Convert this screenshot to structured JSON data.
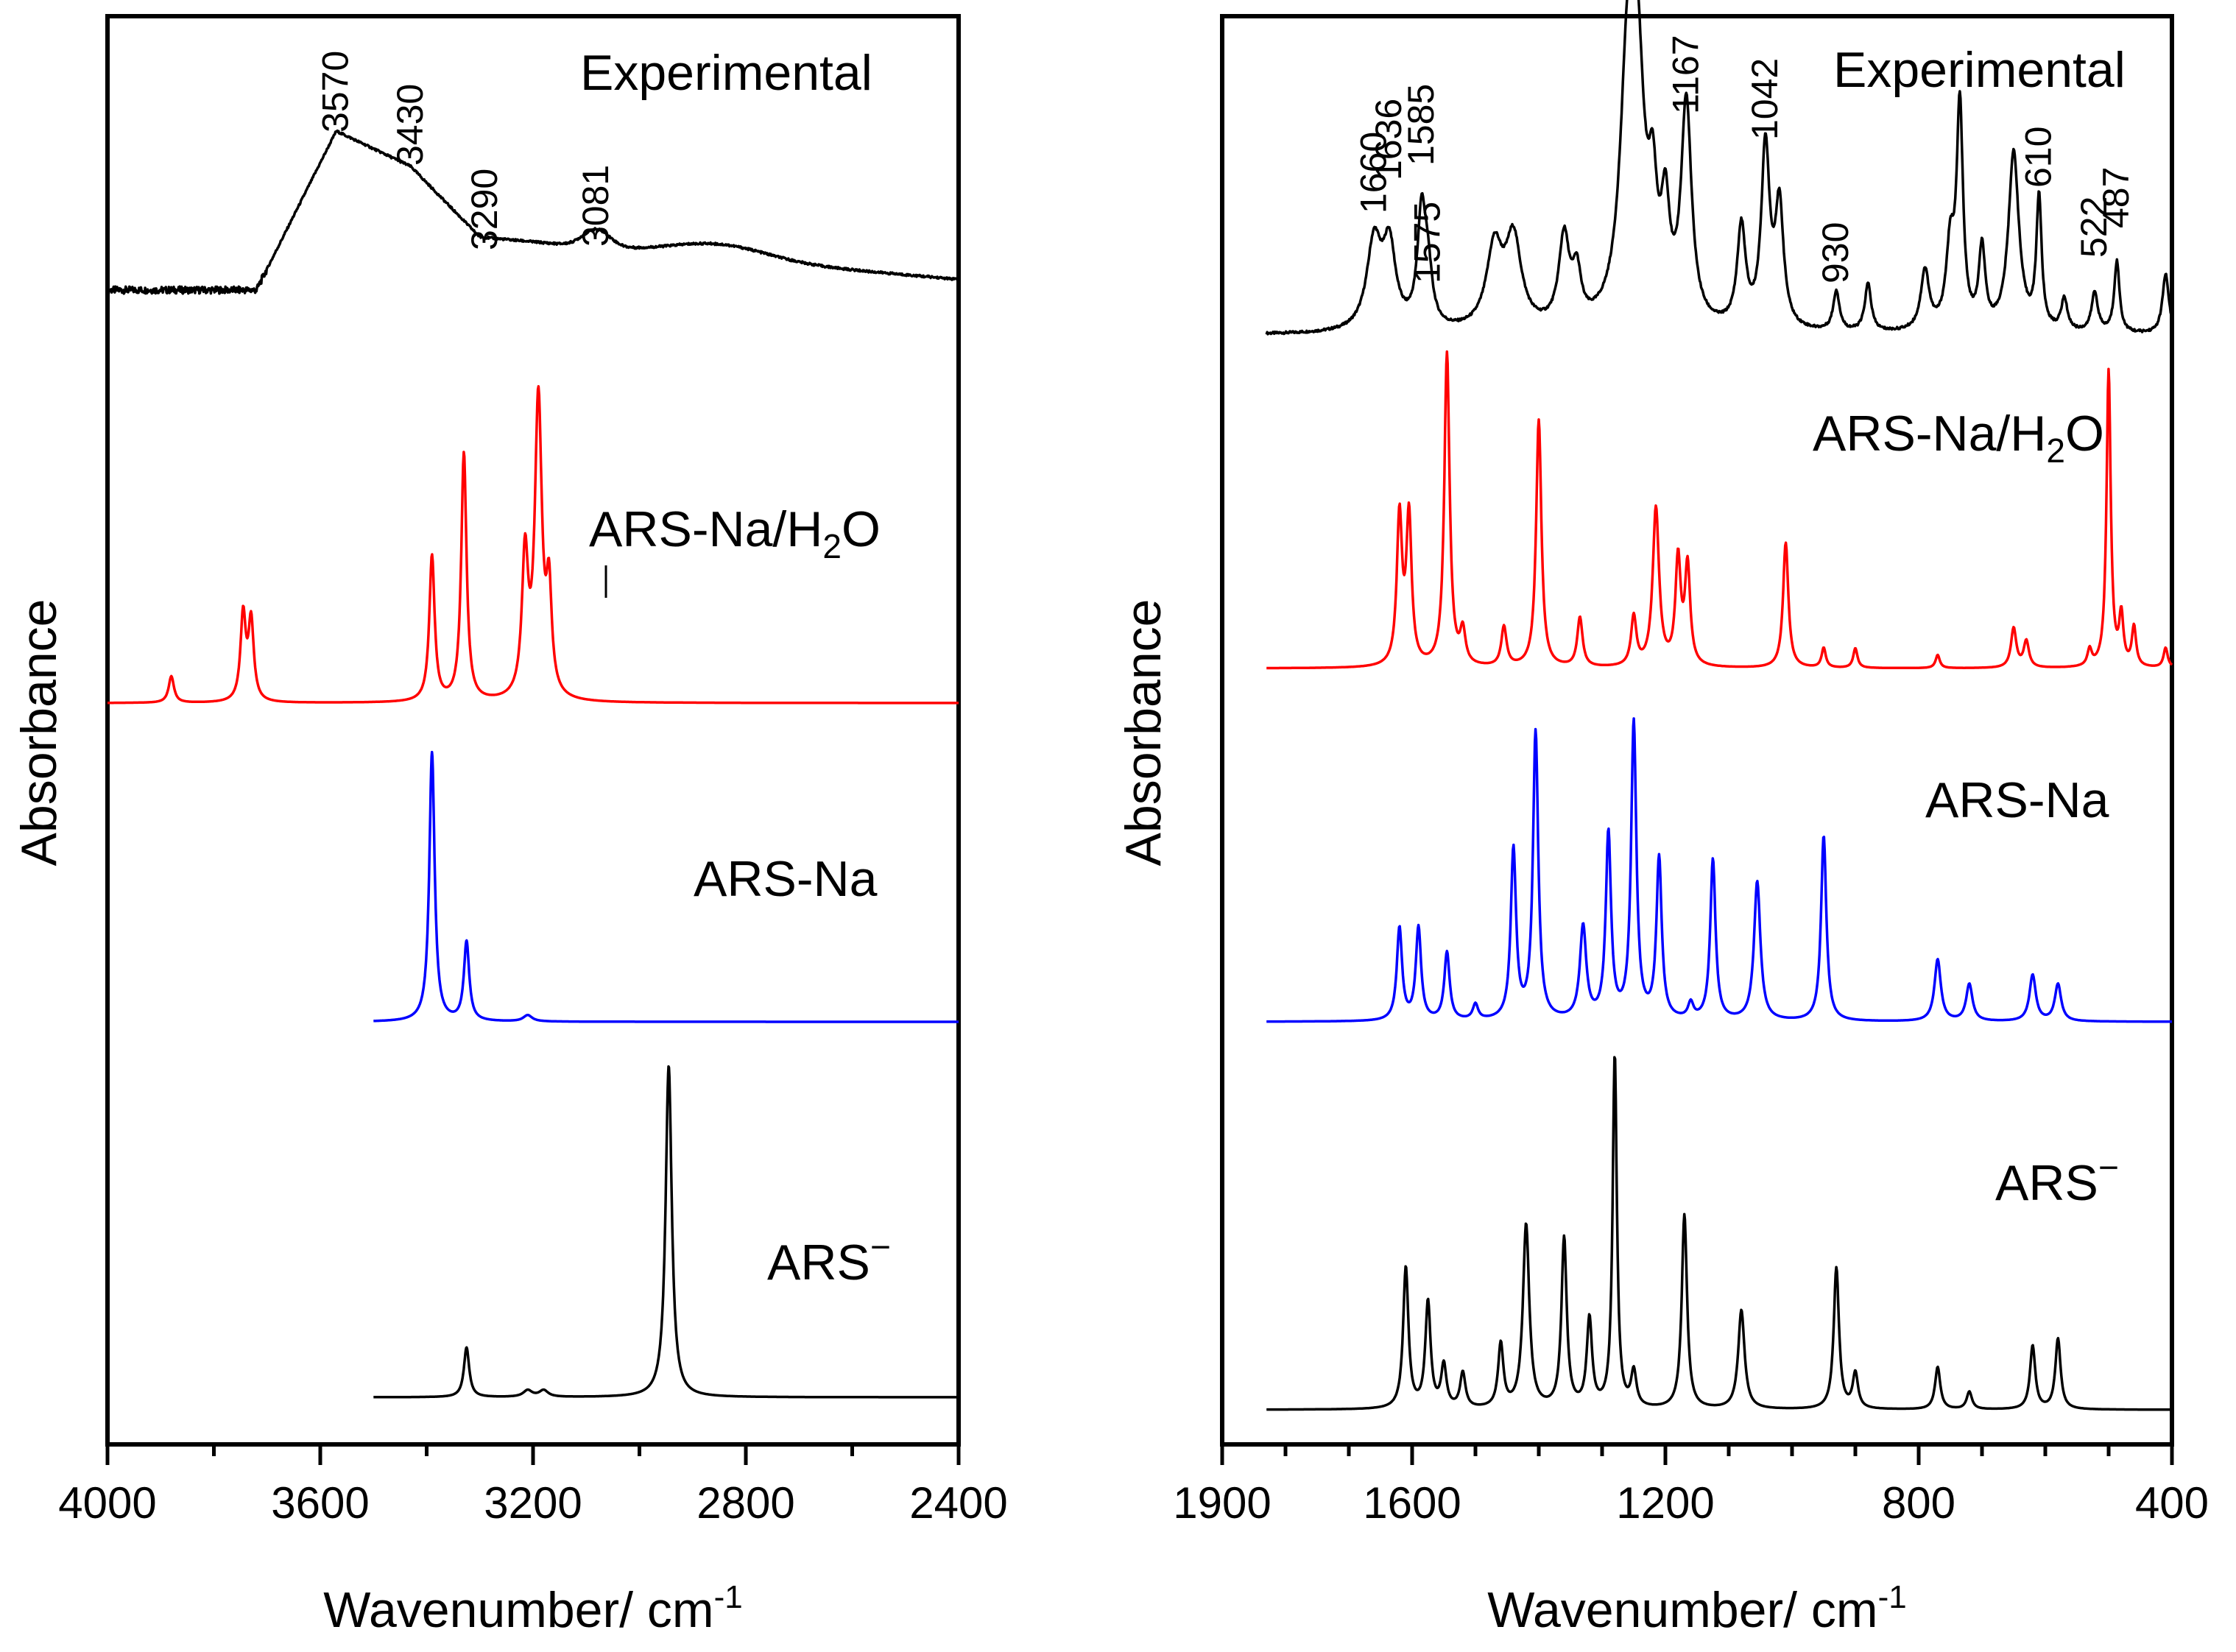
{
  "chart_data": [
    {
      "type": "line",
      "panel": "left",
      "xlabel": "Wavenumber/ cm",
      "xlabel_sup": "-1",
      "ylabel": "Absorbance",
      "xlim": [
        4000,
        2400
      ],
      "x_ticks": [
        4000,
        3600,
        3200,
        2800,
        2400
      ],
      "x_tick_labels": [
        "4000",
        "3600",
        "3200",
        "2800",
        "2400"
      ],
      "y_ticks_shown": false,
      "series": [
        {
          "name": "Experimental",
          "label": "Experimental",
          "color": "#000000",
          "kind": "experimental",
          "x_range": [
            4000,
            2400
          ],
          "baseline": 0.05,
          "peaks": [
            [
              3840,
              0.015,
              40
            ],
            [
              3730,
              0.03,
              35
            ],
            [
              3570,
              0.45,
              70
            ],
            [
              3430,
              0.33,
              110
            ],
            [
              3290,
              0.12,
              90
            ],
            [
              3081,
              0.13,
              40
            ],
            [
              3050,
              0.05,
              30
            ],
            [
              2850,
              0.08,
              120
            ]
          ],
          "peak_labels": [
            {
              "x": 3570,
              "text": "3570"
            },
            {
              "x": 3430,
              "text": "3430"
            },
            {
              "x": 3290,
              "text": "3290"
            },
            {
              "x": 3081,
              "text": "3081"
            }
          ]
        },
        {
          "name": "ARS-Na/H2O",
          "label": "ARS-Na/H",
          "label_sub": "2",
          "label_tail": "O",
          "color": "#ff0000",
          "x_range": [
            4000,
            2400
          ],
          "peaks": [
            [
              3880,
              0.08,
              6
            ],
            [
              3745,
              0.26,
              6
            ],
            [
              3730,
              0.24,
              6
            ],
            [
              3390,
              0.44,
              6
            ],
            [
              3330,
              0.75,
              6
            ],
            [
              3215,
              0.42,
              7
            ],
            [
              3190,
              0.9,
              8
            ],
            [
              3170,
              0.3,
              6
            ]
          ]
        },
        {
          "name": "ARS-Na",
          "label": "ARS-Na",
          "color": "#0000ff",
          "x_range": [
            3500,
            2400
          ],
          "peaks": [
            [
              3390,
              0.85,
              6
            ],
            [
              3325,
              0.25,
              6
            ],
            [
              3210,
              0.02,
              10
            ]
          ]
        },
        {
          "name": "ARS-",
          "label": "ARS",
          "label_sup": "−",
          "color": "#000000",
          "x_range": [
            3500,
            2400
          ],
          "peaks": [
            [
              3325,
              0.15,
              6
            ],
            [
              3210,
              0.02,
              10
            ],
            [
              3180,
              0.02,
              10
            ],
            [
              2945,
              1.0,
              7
            ]
          ]
        }
      ]
    },
    {
      "type": "line",
      "panel": "right",
      "xlabel": "Wavenumber/ cm",
      "xlabel_sup": "-1",
      "ylabel": "Absorbance",
      "xlim": [
        1900,
        400
      ],
      "x_ticks": [
        1900,
        1600,
        1200,
        800,
        400
      ],
      "x_tick_labels": [
        "1900",
        "1600",
        "1200",
        "800",
        "400"
      ],
      "y_ticks_shown": false,
      "series": [
        {
          "name": "Experimental",
          "label": "Experimental",
          "color": "#000000",
          "kind": "experimental",
          "x_range": [
            1830,
            400
          ],
          "baseline": 0.0,
          "peaks": [
            [
              1660,
              0.22,
              14
            ],
            [
              1636,
              0.2,
              12
            ],
            [
              1585,
              0.28,
              8
            ],
            [
              1575,
              0.12,
              8
            ],
            [
              1470,
              0.2,
              15
            ],
            [
              1440,
              0.22,
              15
            ],
            [
              1360,
              0.22,
              10
            ],
            [
              1340,
              0.12,
              8
            ],
            [
              1260,
              0.55,
              14
            ],
            [
              1245,
              0.6,
              14
            ],
            [
              1220,
              0.25,
              8
            ],
            [
              1200,
              0.25,
              8
            ],
            [
              1167,
              0.55,
              10
            ],
            [
              1080,
              0.25,
              8
            ],
            [
              1042,
              0.45,
              8
            ],
            [
              1020,
              0.3,
              8
            ],
            [
              930,
              0.1,
              6
            ],
            [
              880,
              0.12,
              6
            ],
            [
              790,
              0.15,
              8
            ],
            [
              750,
              0.2,
              8
            ],
            [
              735,
              0.55,
              6
            ],
            [
              700,
              0.2,
              6
            ],
            [
              650,
              0.45,
              10
            ],
            [
              610,
              0.33,
              5
            ],
            [
              570,
              0.08,
              6
            ],
            [
              522,
              0.1,
              6
            ],
            [
              487,
              0.18,
              5
            ],
            [
              410,
              0.15,
              6
            ]
          ],
          "peak_labels": [
            {
              "x": 1660,
              "text": "1660"
            },
            {
              "x": 1636,
              "text": "1636"
            },
            {
              "x": 1585,
              "text": "1585"
            },
            {
              "x": 1575,
              "text": "1575"
            },
            {
              "x": 1167,
              "text": "1167"
            },
            {
              "x": 1042,
              "text": "1042"
            },
            {
              "x": 930,
              "text": "930"
            },
            {
              "x": 610,
              "text": "610"
            },
            {
              "x": 522,
              "text": "522"
            },
            {
              "x": 487,
              "text": "487"
            }
          ]
        },
        {
          "name": "ARS-Na/H2O",
          "label": "ARS-Na/H",
          "label_sub": "2",
          "label_tail": "O",
          "color": "#ff0000",
          "x_range": [
            1830,
            400
          ],
          "peaks": [
            [
              1620,
              0.45,
              5
            ],
            [
              1605,
              0.45,
              5
            ],
            [
              1545,
              0.95,
              5
            ],
            [
              1520,
              0.1,
              5
            ],
            [
              1455,
              0.12,
              5
            ],
            [
              1400,
              0.75,
              5
            ],
            [
              1335,
              0.15,
              5
            ],
            [
              1250,
              0.15,
              5
            ],
            [
              1215,
              0.48,
              6
            ],
            [
              1180,
              0.32,
              5
            ],
            [
              1165,
              0.3,
              5
            ],
            [
              1010,
              0.38,
              5
            ],
            [
              950,
              0.06,
              4
            ],
            [
              900,
              0.06,
              4
            ],
            [
              770,
              0.04,
              4
            ],
            [
              650,
              0.12,
              5
            ],
            [
              630,
              0.08,
              5
            ],
            [
              530,
              0.05,
              4
            ],
            [
              500,
              0.9,
              4
            ],
            [
              480,
              0.15,
              4
            ],
            [
              460,
              0.12,
              4
            ],
            [
              410,
              0.06,
              4
            ]
          ]
        },
        {
          "name": "ARS-Na",
          "label": "ARS-Na",
          "color": "#0000ff",
          "x_range": [
            1830,
            400
          ],
          "peaks": [
            [
              1620,
              0.3,
              5
            ],
            [
              1590,
              0.3,
              5
            ],
            [
              1545,
              0.22,
              5
            ],
            [
              1500,
              0.05,
              5
            ],
            [
              1440,
              0.55,
              5
            ],
            [
              1405,
              0.93,
              5
            ],
            [
              1330,
              0.3,
              6
            ],
            [
              1290,
              0.6,
              5
            ],
            [
              1250,
              0.96,
              5
            ],
            [
              1210,
              0.52,
              5
            ],
            [
              1160,
              0.05,
              5
            ],
            [
              1125,
              0.52,
              5
            ],
            [
              1055,
              0.45,
              6
            ],
            [
              950,
              0.6,
              5
            ],
            [
              770,
              0.2,
              6
            ],
            [
              720,
              0.12,
              6
            ],
            [
              620,
              0.15,
              6
            ],
            [
              580,
              0.12,
              6
            ]
          ]
        },
        {
          "name": "ARS-",
          "label": "ARS",
          "label_sup": "−",
          "color": "#000000",
          "x_range": [
            1830,
            400
          ],
          "peaks": [
            [
              1610,
              0.4,
              5
            ],
            [
              1575,
              0.3,
              5
            ],
            [
              1550,
              0.12,
              5
            ],
            [
              1520,
              0.1,
              5
            ],
            [
              1460,
              0.18,
              5
            ],
            [
              1420,
              0.52,
              6
            ],
            [
              1360,
              0.48,
              5
            ],
            [
              1320,
              0.25,
              5
            ],
            [
              1280,
              1.0,
              4
            ],
            [
              1250,
              0.1,
              5
            ],
            [
              1170,
              0.55,
              5
            ],
            [
              1080,
              0.28,
              6
            ],
            [
              930,
              0.4,
              5
            ],
            [
              900,
              0.1,
              5
            ],
            [
              770,
              0.12,
              5
            ],
            [
              720,
              0.05,
              5
            ],
            [
              620,
              0.18,
              5
            ],
            [
              580,
              0.2,
              5
            ]
          ]
        }
      ]
    }
  ]
}
